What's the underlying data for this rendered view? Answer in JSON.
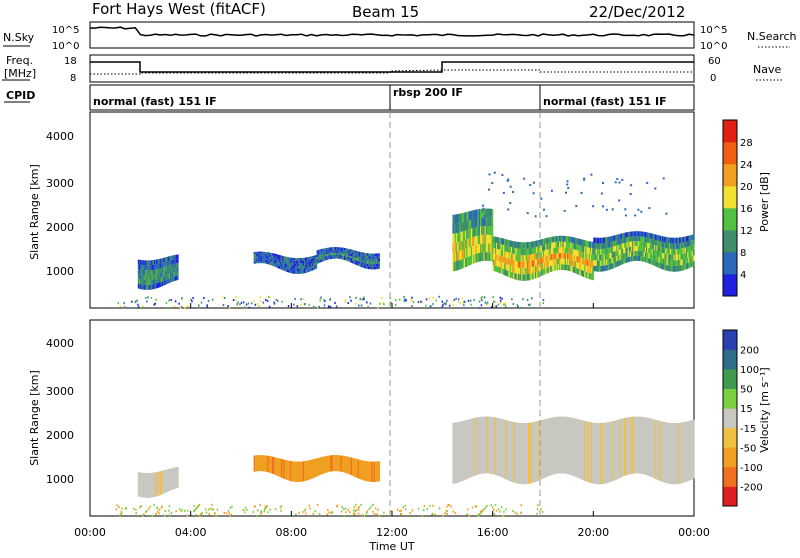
{
  "header": {
    "station": "Fort Hays West (fitACF)",
    "beam": "Beam 15",
    "date": "22/Dec/2012"
  },
  "strip_labels": {
    "nsky": "N.Sky",
    "freq_line1": "Freq.",
    "freq_line2": "[MHz]",
    "cpid": "CPID",
    "nsearch": "N.Search",
    "nave": "Nave"
  },
  "noise_axis": {
    "left_top": "10^5",
    "left_bottom": "10^0",
    "right_top": "10^5",
    "right_bottom": "10^0"
  },
  "freq_axis": {
    "left_ticks": [
      "18",
      "8"
    ],
    "right_ticks": [
      "60",
      "0"
    ]
  },
  "cpid_segments": [
    {
      "label": "normal (fast) 151 IF",
      "start_h": 0
    },
    {
      "label": "rbsp 200 IF",
      "start_h": 12
    },
    {
      "label": "normal (fast) 151 IF",
      "start_h": 18
    }
  ],
  "time_axis": {
    "label": "Time UT",
    "ticks": [
      "00:00",
      "04:00",
      "08:00",
      "12:00",
      "16:00",
      "20:00",
      "00:00"
    ]
  },
  "power_panel": {
    "ylabel": "Slant Range [km]",
    "yticks": [
      "1000",
      "2000",
      "3000",
      "4000"
    ],
    "colorbar_label": "Power [dB]",
    "colorbar_ticks": [
      "4",
      "8",
      "12",
      "16",
      "20",
      "24",
      "28"
    ],
    "colors": [
      "#2020e0",
      "#2a6ab8",
      "#3f8f6a",
      "#52c040",
      "#f0e030",
      "#f0a020",
      "#f06010",
      "#e02010"
    ]
  },
  "velocity_panel": {
    "ylabel": "Slant Range [km]",
    "yticks": [
      "1000",
      "2000",
      "3000",
      "4000"
    ],
    "colorbar_label": "Velocity [m s⁻¹]",
    "colorbar_ticks": [
      "200",
      "100",
      "50",
      "15",
      "-15",
      "-50",
      "-100",
      "-200"
    ],
    "colors": [
      "#2a3fb0",
      "#2f6e8a",
      "#3f9a50",
      "#7ad040",
      "#c8c8c0",
      "#f0c040",
      "#f0a020",
      "#f07020",
      "#e02020"
    ]
  },
  "chart_data": {
    "type": "heatmap",
    "x_range_hours": [
      0,
      24
    ],
    "y_range_km": [
      180,
      4500
    ],
    "power_bands": [
      {
        "t0": 1.9,
        "t1": 3.5,
        "r_lo": 700,
        "r_hi": 1300,
        "db": 8
      },
      {
        "t0": 6.5,
        "t1": 9.0,
        "r_lo": 1050,
        "r_hi": 1350,
        "db": 6
      },
      {
        "t0": 9.0,
        "t1": 11.5,
        "r_lo": 1150,
        "r_hi": 1450,
        "db": 7
      },
      {
        "t0": 14.4,
        "t1": 16.0,
        "r_lo": 1100,
        "r_hi": 2300,
        "db": 18
      },
      {
        "t0": 16.0,
        "t1": 20.0,
        "r_lo": 900,
        "r_hi": 1700,
        "db": 20
      },
      {
        "t0": 20.0,
        "t1": 24.0,
        "r_lo": 1100,
        "r_hi": 1800,
        "db": 14
      }
    ],
    "velocity_bands": [
      {
        "t0": 1.9,
        "t1": 3.5,
        "r_lo": 700,
        "r_hi": 1200,
        "v": -15
      },
      {
        "t0": 6.5,
        "t1": 11.5,
        "r_lo": 1050,
        "r_hi": 1450,
        "v": -50
      },
      {
        "t0": 14.4,
        "t1": 24.0,
        "r_lo": 1000,
        "r_hi": 2300,
        "v": 0
      }
    ]
  }
}
